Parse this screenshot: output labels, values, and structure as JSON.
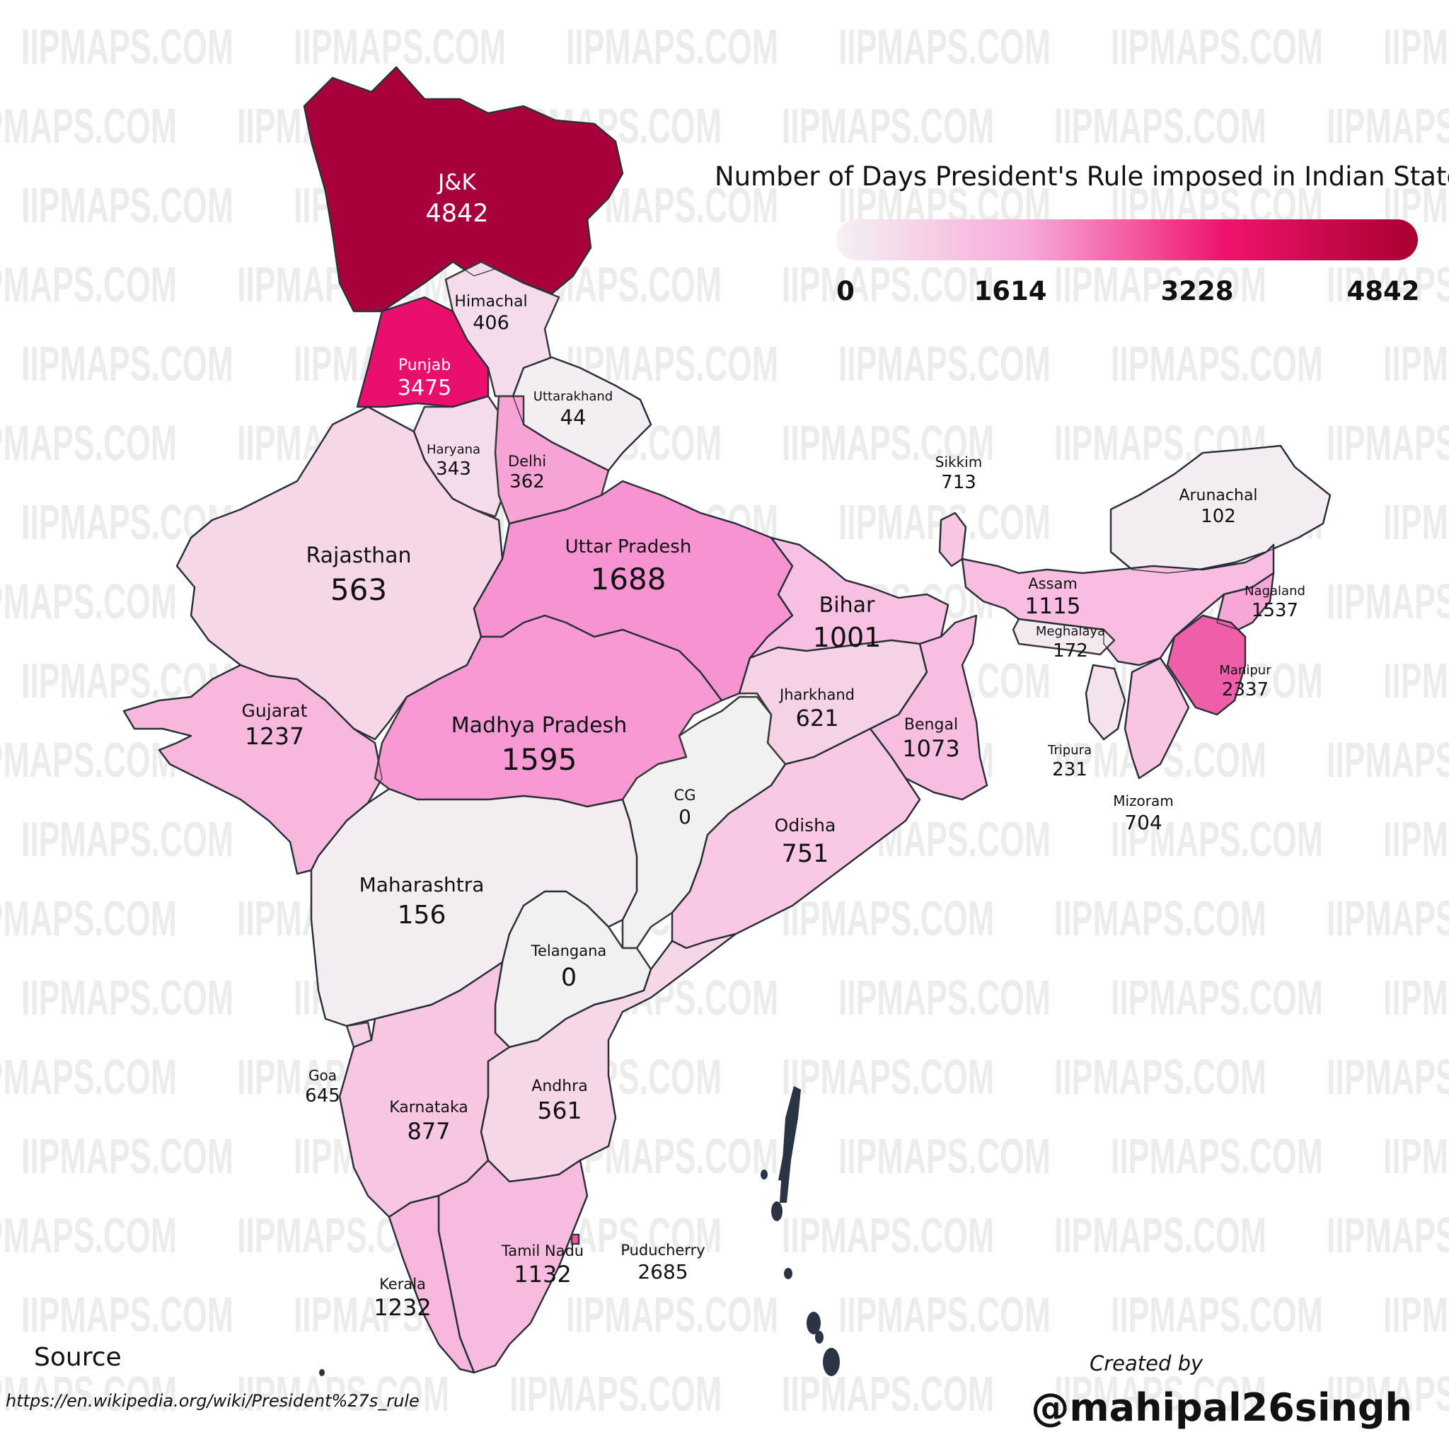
{
  "title": "Number of Days President's Rule imposed in Indian States",
  "legend": {
    "ticks": [
      "0",
      "1614",
      "3228",
      "4842"
    ],
    "colors": [
      "#f4f2f4",
      "#f7a8d8",
      "#f0136e",
      "#a80030"
    ]
  },
  "states": [
    {
      "name": "J&K",
      "value": "4842",
      "color": "#a8003a"
    },
    {
      "name": "Himachal",
      "value": "406",
      "color": "#f5dcec"
    },
    {
      "name": "Punjab",
      "value": "3475",
      "color": "#ea0f6d"
    },
    {
      "name": "Uttarakhand",
      "value": "44",
      "color": "#f3eef2"
    },
    {
      "name": "Haryana",
      "value": "343",
      "color": "#f5dcec"
    },
    {
      "name": "Delhi",
      "value": "362",
      "color": "#f7a3d5"
    },
    {
      "name": "Rajasthan",
      "value": "563",
      "color": "#f5d7e8"
    },
    {
      "name": "Uttar Pradesh",
      "value": "1688",
      "color": "#f893d2"
    },
    {
      "name": "Bihar",
      "value": "1001",
      "color": "#f8c0e2"
    },
    {
      "name": "Sikkim",
      "value": "713",
      "color": "#f8c6e3"
    },
    {
      "name": "Arunachal",
      "value": "102",
      "color": "#f3ecf1"
    },
    {
      "name": "Assam",
      "value": "1115",
      "color": "#f8bde1"
    },
    {
      "name": "Nagaland",
      "value": "1537",
      "color": "#f7a6d6"
    },
    {
      "name": "Meghalaya",
      "value": "172",
      "color": "#f3eaf0"
    },
    {
      "name": "Manipur",
      "value": "2337",
      "color": "#ef5ea8"
    },
    {
      "name": "Tripura",
      "value": "231",
      "color": "#f4e2ed"
    },
    {
      "name": "Mizoram",
      "value": "704",
      "color": "#f8c6e3"
    },
    {
      "name": "Gujarat",
      "value": "1237",
      "color": "#f8b8de"
    },
    {
      "name": "Madhya Pradesh",
      "value": "1595",
      "color": "#f899d4"
    },
    {
      "name": "Jharkhand",
      "value": "621",
      "color": "#f6d2e7"
    },
    {
      "name": "Bengal",
      "value": "1073",
      "color": "#f8bee1"
    },
    {
      "name": "CG",
      "value": "0",
      "color": "#f2f1f1"
    },
    {
      "name": "Odisha",
      "value": "751",
      "color": "#f8c8e4"
    },
    {
      "name": "Maharashtra",
      "value": "156",
      "color": "#f3ecf0"
    },
    {
      "name": "Telangana",
      "value": "0",
      "color": "#f2f1f1"
    },
    {
      "name": "Goa",
      "value": "645",
      "color": "#f6d0e6"
    },
    {
      "name": "Karnataka",
      "value": "877",
      "color": "#f8c6e3"
    },
    {
      "name": "Andhra",
      "value": "561",
      "color": "#f5d7e8"
    },
    {
      "name": "Tamil Nadu",
      "value": "1132",
      "color": "#f8bbe0"
    },
    {
      "name": "Puducherry",
      "value": "2685",
      "color": "#f257a5"
    },
    {
      "name": "Kerala",
      "value": "1232",
      "color": "#f8b8de"
    }
  ],
  "watermark": "IIPMAPS.COM",
  "source": {
    "title": "Source",
    "url": "https://en.wikipedia.org/wiki/President%27s_rule"
  },
  "credit": {
    "label": "Created by",
    "handle": "@mahipal26singh"
  }
}
